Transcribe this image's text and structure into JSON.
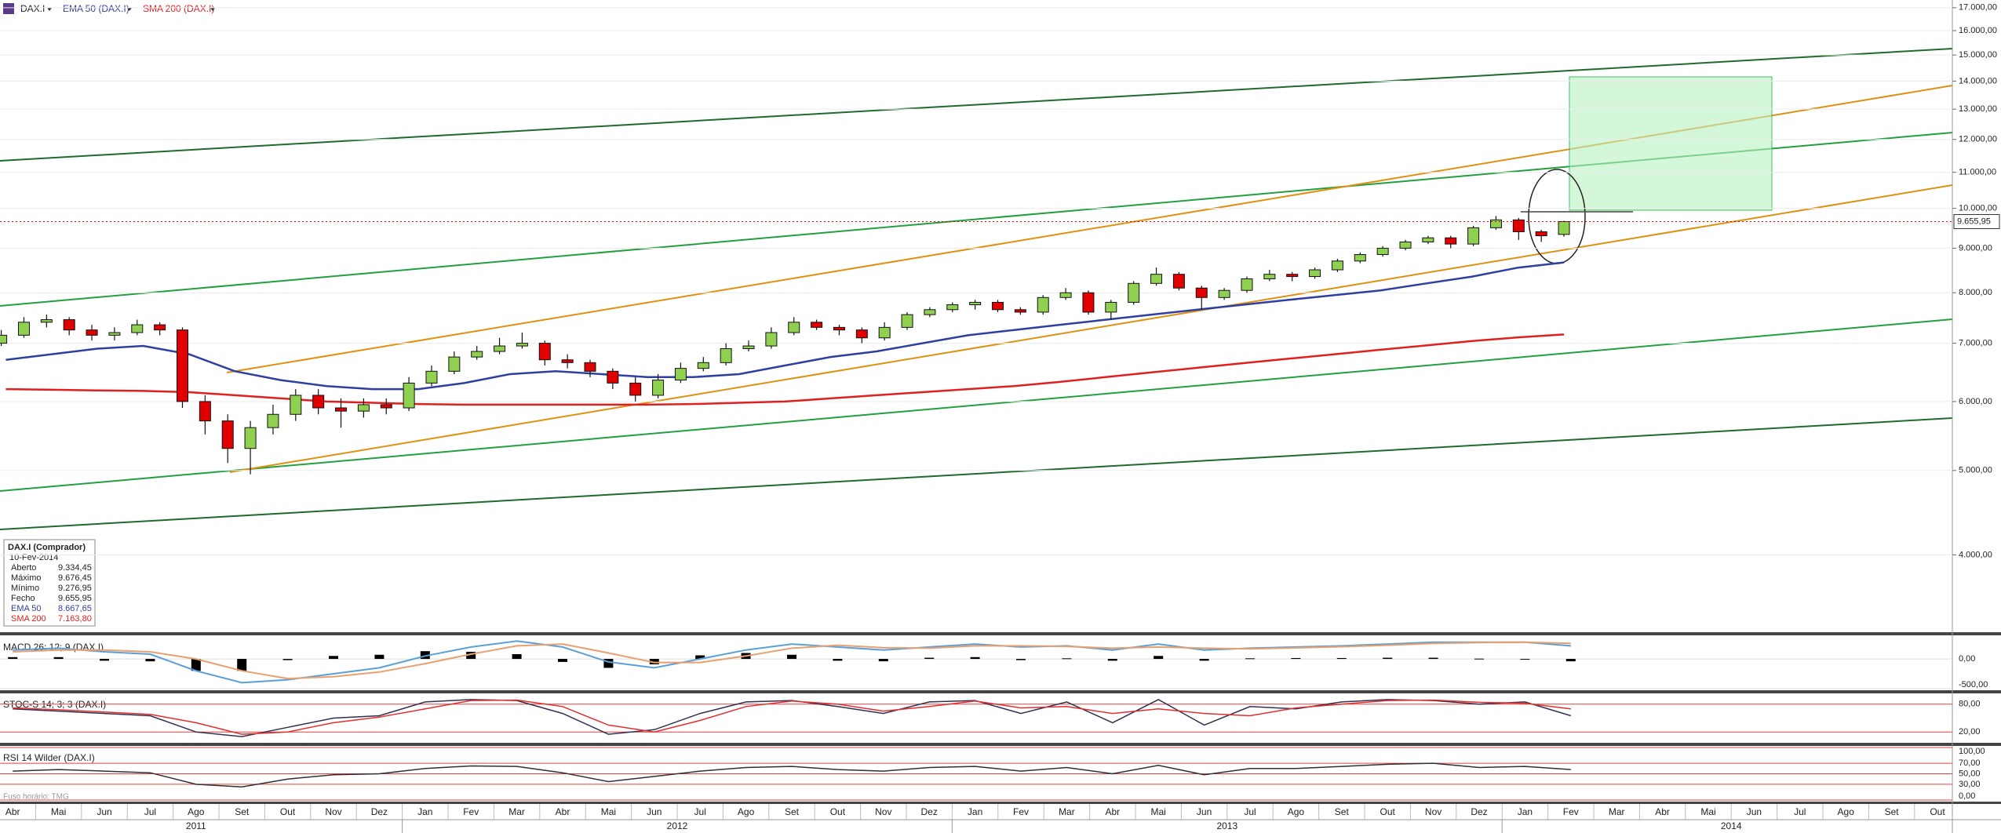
{
  "chart_data": [
    {
      "type": "candlestick",
      "name": "DAX.I",
      "log_scale": true,
      "grid": true,
      "ylim": [
        3260,
        17350
      ],
      "yticks": [
        {
          "value": 4000,
          "label": "4.000,00"
        },
        {
          "value": 5000,
          "label": "5.000,00"
        },
        {
          "value": 6000,
          "label": "6.000,00"
        },
        {
          "value": 7000,
          "label": "7.000,00"
        },
        {
          "value": 8000,
          "label": "8.000,00"
        },
        {
          "value": 9000,
          "label": "9.000,00"
        },
        {
          "value": 10000,
          "label": "10.000,00"
        },
        {
          "value": 11000,
          "label": "11.000,00"
        },
        {
          "value": 12000,
          "label": "12.000,00"
        },
        {
          "value": 13000,
          "label": "13.000,00"
        },
        {
          "value": 14000,
          "label": "14.000,00"
        },
        {
          "value": 15000,
          "label": "15.000,00"
        },
        {
          "value": 16000,
          "label": "16.000,00"
        },
        {
          "value": 17000,
          "label": "17.000,00"
        }
      ],
      "up_color": "#90d050",
      "down_color": "#e00000",
      "price_tag": {
        "value": 9655.95,
        "label": "9.655,95"
      },
      "ohlc": [
        [
          7000,
          7250,
          6950,
          7150
        ],
        [
          7150,
          7500,
          7100,
          7400
        ],
        [
          7400,
          7550,
          7300,
          7450
        ],
        [
          7450,
          7500,
          7150,
          7250
        ],
        [
          7250,
          7350,
          7050,
          7150
        ],
        [
          7150,
          7300,
          7050,
          7200
        ],
        [
          7200,
          7450,
          7150,
          7350
        ],
        [
          7350,
          7400,
          7150,
          7250
        ],
        [
          7250,
          7300,
          5900,
          6000
        ],
        [
          6000,
          6100,
          5500,
          5700
        ],
        [
          5700,
          5800,
          5100,
          5300
        ],
        [
          5300,
          5700,
          4950,
          5600
        ],
        [
          5600,
          5950,
          5500,
          5800
        ],
        [
          5800,
          6200,
          5700,
          6100
        ],
        [
          6100,
          6200,
          5800,
          5900
        ],
        [
          5900,
          6050,
          5600,
          5850
        ],
        [
          5850,
          6050,
          5750,
          5950
        ],
        [
          5950,
          6050,
          5800,
          5900
        ],
        [
          5900,
          6400,
          5850,
          6300
        ],
        [
          6300,
          6600,
          6250,
          6500
        ],
        [
          6500,
          6850,
          6450,
          6750
        ],
        [
          6750,
          6950,
          6700,
          6850
        ],
        [
          6850,
          7100,
          6800,
          6950
        ],
        [
          6950,
          7200,
          6900,
          7000
        ],
        [
          7000,
          7050,
          6600,
          6700
        ],
        [
          6700,
          6800,
          6550,
          6650
        ],
        [
          6650,
          6700,
          6400,
          6500
        ],
        [
          6500,
          6550,
          6200,
          6300
        ],
        [
          6300,
          6400,
          6000,
          6100
        ],
        [
          6100,
          6450,
          6050,
          6350
        ],
        [
          6350,
          6650,
          6300,
          6550
        ],
        [
          6550,
          6750,
          6500,
          6650
        ],
        [
          6650,
          7000,
          6600,
          6900
        ],
        [
          6900,
          7050,
          6850,
          6950
        ],
        [
          6950,
          7300,
          6900,
          7200
        ],
        [
          7200,
          7500,
          7150,
          7400
        ],
        [
          7400,
          7450,
          7250,
          7300
        ],
        [
          7300,
          7350,
          7150,
          7250
        ],
        [
          7250,
          7300,
          7000,
          7100
        ],
        [
          7100,
          7400,
          7050,
          7300
        ],
        [
          7300,
          7600,
          7250,
          7550
        ],
        [
          7550,
          7700,
          7500,
          7650
        ],
        [
          7650,
          7800,
          7600,
          7750
        ],
        [
          7750,
          7850,
          7650,
          7800
        ],
        [
          7800,
          7850,
          7600,
          7650
        ],
        [
          7650,
          7700,
          7550,
          7600
        ],
        [
          7600,
          7950,
          7550,
          7900
        ],
        [
          7900,
          8100,
          7850,
          8000
        ],
        [
          8000,
          8050,
          7550,
          7600
        ],
        [
          7600,
          7850,
          7450,
          7800
        ],
        [
          7800,
          8250,
          7750,
          8200
        ],
        [
          8200,
          8550,
          8150,
          8400
        ],
        [
          8400,
          8450,
          8050,
          8100
        ],
        [
          8100,
          8150,
          7650,
          7900
        ],
        [
          7900,
          8100,
          7850,
          8050
        ],
        [
          8050,
          8350,
          8000,
          8300
        ],
        [
          8300,
          8500,
          8250,
          8400
        ],
        [
          8400,
          8450,
          8250,
          8350
        ],
        [
          8350,
          8550,
          8300,
          8500
        ],
        [
          8500,
          8750,
          8450,
          8700
        ],
        [
          8700,
          8900,
          8650,
          8850
        ],
        [
          8850,
          9050,
          8800,
          9000
        ],
        [
          9000,
          9200,
          8950,
          9150
        ],
        [
          9150,
          9300,
          9100,
          9250
        ],
        [
          9250,
          9300,
          9000,
          9100
        ],
        [
          9100,
          9550,
          9050,
          9500
        ],
        [
          9500,
          9800,
          9450,
          9700
        ],
        [
          9700,
          9750,
          9200,
          9400
        ],
        [
          9400,
          9450,
          9150,
          9300
        ],
        [
          9334.45,
          9676.45,
          9276.95,
          9655.95
        ]
      ],
      "overlays": [
        {
          "name": "EMA 50 (DAX.I)",
          "color": "#2f3f9f",
          "values": [
            6700,
            6800,
            6900,
            6950,
            6800,
            6500,
            6350,
            6250,
            6200,
            6200,
            6300,
            6450,
            6500,
            6450,
            6400,
            6400,
            6450,
            6600,
            6750,
            6850,
            7000,
            7150,
            7250,
            7350,
            7450,
            7550,
            7650,
            7750,
            7850,
            7950,
            8050,
            8200,
            8350,
            8550,
            8667.65
          ]
        },
        {
          "name": "SMA 200 (DAX.I)",
          "color": "#e02020",
          "values": [
            6200,
            6190,
            6180,
            6170,
            6150,
            6100,
            6050,
            6000,
            5980,
            5960,
            5950,
            5950,
            5950,
            5950,
            5950,
            5960,
            5980,
            6000,
            6050,
            6100,
            6150,
            6200,
            6250,
            6320,
            6400,
            6480,
            6560,
            6640,
            6720,
            6800,
            6880,
            6960,
            7040,
            7110,
            7163.8
          ]
        }
      ]
    },
    {
      "type": "macd",
      "title": "MACD 26; 12; 9 (DAX.I)",
      "ylim": [
        -500,
        370
      ],
      "yticks": [
        {
          "value": 0,
          "label": "0,00"
        },
        {
          "value": -500,
          "label": "-500,00"
        }
      ],
      "macd": {
        "color": "#5aa0d8",
        "values": [
          150,
          180,
          120,
          80,
          -200,
          -400,
          -350,
          -250,
          -150,
          50,
          200,
          300,
          200,
          -50,
          -150,
          0,
          150,
          250,
          200,
          150,
          200,
          250,
          200,
          220,
          150,
          250,
          150,
          180,
          200,
          220,
          250,
          280,
          280,
          280,
          220
        ]
      },
      "signal": {
        "color": "#e8a070",
        "values": [
          120,
          150,
          150,
          120,
          0,
          -200,
          -330,
          -300,
          -220,
          -80,
          80,
          220,
          250,
          100,
          -60,
          -60,
          50,
          180,
          230,
          190,
          180,
          220,
          220,
          210,
          180,
          200,
          180,
          170,
          185,
          205,
          230,
          260,
          275,
          280,
          260
        ]
      },
      "histogram": {
        "color": "#000000",
        "values": [
          30,
          30,
          -30,
          -40,
          -200,
          -200,
          -20,
          50,
          70,
          130,
          120,
          80,
          -50,
          -150,
          -90,
          60,
          100,
          70,
          -30,
          -40,
          20,
          30,
          -20,
          10,
          -30,
          50,
          -30,
          10,
          15,
          15,
          20,
          20,
          5,
          0,
          -40
        ]
      }
    },
    {
      "type": "stochastic",
      "title": "STOC-S 14; 3; 3 (DAX.I)",
      "ylim": [
        0,
        100
      ],
      "yticks": [
        {
          "value": 20,
          "label": "20,00"
        },
        {
          "value": 80,
          "label": "80,00"
        }
      ],
      "k": {
        "color": "#303050",
        "values": [
          70,
          65,
          60,
          55,
          20,
          10,
          30,
          50,
          55,
          85,
          90,
          88,
          60,
          15,
          25,
          60,
          85,
          88,
          75,
          60,
          85,
          88,
          60,
          85,
          40,
          90,
          35,
          75,
          70,
          85,
          90,
          88,
          80,
          85,
          55
        ]
      },
      "d": {
        "color": "#e03030",
        "values": [
          72,
          68,
          63,
          58,
          40,
          15,
          20,
          40,
          52,
          70,
          88,
          89,
          75,
          35,
          20,
          45,
          75,
          87,
          80,
          65,
          75,
          87,
          72,
          75,
          60,
          70,
          60,
          55,
          72,
          80,
          88,
          89,
          84,
          82,
          70
        ]
      }
    },
    {
      "type": "rsi",
      "title": "RSI 14 Wilder (DAX.I)",
      "ylim": [
        0,
        100
      ],
      "yticks": [
        {
          "value": 100,
          "label": "100,00"
        },
        {
          "value": 70,
          "label": "70,00"
        },
        {
          "value": 50,
          "label": "50,00"
        },
        {
          "value": 30,
          "label": "30,00"
        },
        {
          "value": 0,
          "label": "0,00"
        }
      ],
      "rsi": {
        "color": "#303030",
        "values": [
          55,
          58,
          55,
          52,
          30,
          25,
          40,
          48,
          50,
          60,
          65,
          64,
          52,
          35,
          45,
          55,
          62,
          64,
          58,
          55,
          62,
          64,
          55,
          62,
          50,
          66,
          48,
          60,
          60,
          64,
          68,
          70,
          62,
          64,
          58
        ]
      }
    }
  ],
  "x_axis": {
    "months": [
      "Abr",
      "Mai",
      "Jun",
      "Jul",
      "Ago",
      "Set",
      "Out",
      "Nov",
      "Dez",
      "Jan",
      "Fev",
      "Mar",
      "Abr",
      "Mai",
      "Jun",
      "Jul",
      "Ago",
      "Set",
      "Out",
      "Nov",
      "Dez",
      "Jan",
      "Fev",
      "Mar",
      "Abr",
      "Mai",
      "Jun",
      "Jul",
      "Ago",
      "Set",
      "Out",
      "Nov",
      "Dez",
      "Jan",
      "Fev",
      "Mar",
      "Abr",
      "Mai",
      "Jun",
      "Jul",
      "Ago",
      "Set",
      "Out"
    ],
    "years": [
      "2011",
      "2012",
      "2013",
      "2014"
    ]
  },
  "info_box": {
    "title": "DAX.I (Comprador)",
    "date": "10-Fev-2014",
    "rows": [
      {
        "label": "Aberto",
        "value": "9.334,45"
      },
      {
        "label": "Máximo",
        "value": "9.676,45"
      },
      {
        "label": "Mínimo",
        "value": "9.276,95"
      },
      {
        "label": "Fecho",
        "value": "9.655,95"
      },
      {
        "label": "EMA 50",
        "value": "8.667,65"
      },
      {
        "label": "SMA 200",
        "value": "7.163,80"
      }
    ]
  },
  "timezone": "Fuso horário: TMG"
}
